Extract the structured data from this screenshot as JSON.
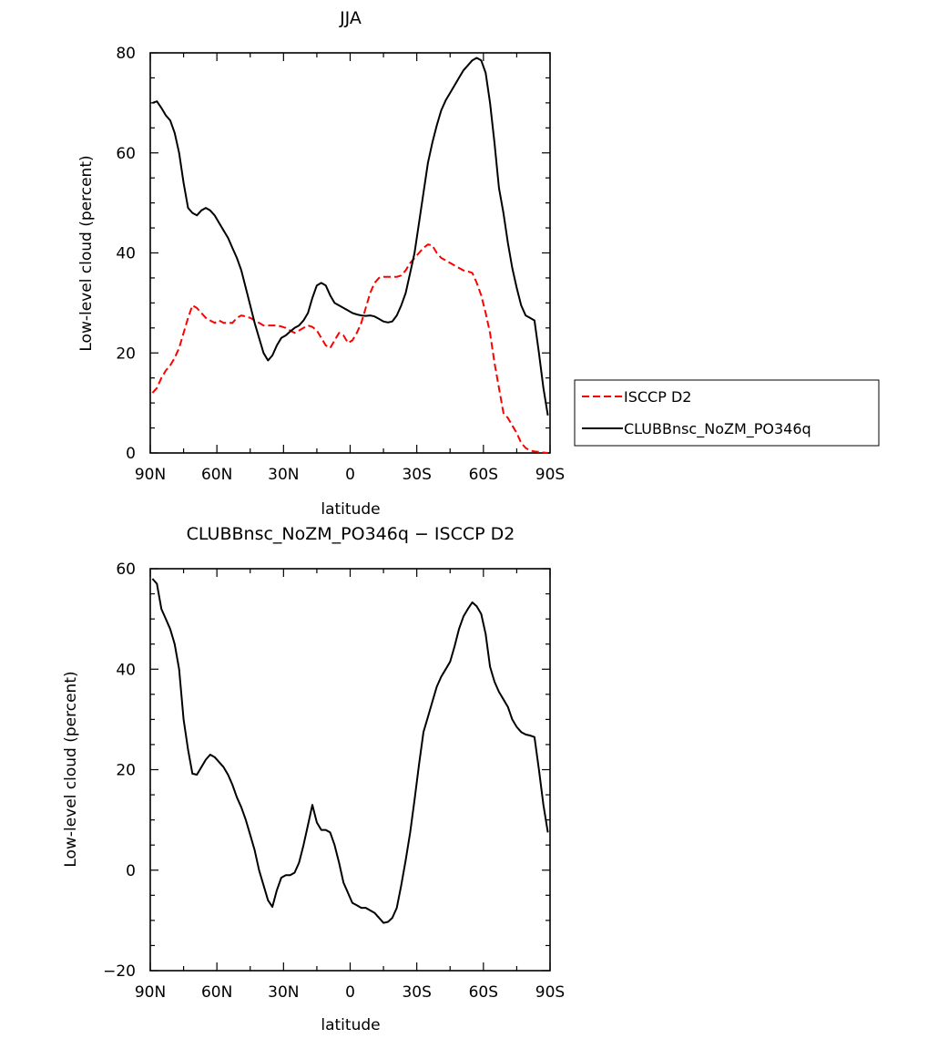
{
  "chart_data": [
    {
      "type": "line",
      "title": "JJA",
      "xlabel": "latitude",
      "ylabel": "Low-level cloud (percent)",
      "xlim": [
        90,
        -90
      ],
      "ylim": [
        0,
        80
      ],
      "yticks": [
        0,
        20,
        40,
        60,
        80
      ],
      "xticks": [
        {
          "value": 90,
          "label": "90N"
        },
        {
          "value": 60,
          "label": "60N"
        },
        {
          "value": 30,
          "label": "30N"
        },
        {
          "value": 0,
          "label": "0"
        },
        {
          "value": -30,
          "label": "30S"
        },
        {
          "value": -60,
          "label": "60S"
        },
        {
          "value": -90,
          "label": "90S"
        }
      ],
      "legend_position": "right",
      "series": [
        {
          "name": "ISCCP D2",
          "color": "#ff0000",
          "dash": "dashed",
          "x": [
            89,
            87,
            85,
            83,
            81,
            79,
            77,
            75,
            73,
            71,
            69,
            67,
            65,
            63,
            61,
            59,
            57,
            55,
            53,
            51,
            49,
            47,
            45,
            43,
            41,
            39,
            37,
            35,
            33,
            31,
            29,
            27,
            25,
            23,
            21,
            19,
            17,
            15,
            13,
            11,
            9,
            7,
            5,
            3,
            1,
            -1,
            -3,
            -5,
            -7,
            -9,
            -11,
            -13,
            -15,
            -17,
            -19,
            -21,
            -23,
            -25,
            -27,
            -29,
            -31,
            -33,
            -35,
            -37,
            -39,
            -41,
            -43,
            -45,
            -47,
            -49,
            -51,
            -53,
            -55,
            -57,
            -59,
            -61,
            -63,
            -65,
            -67,
            -69,
            -71,
            -73,
            -75,
            -77,
            -79,
            -81,
            -83,
            -85,
            -87,
            -89
          ],
          "y": [
            12,
            13,
            15,
            16.5,
            17.5,
            19,
            21,
            24,
            27,
            29.5,
            29,
            28,
            27,
            26.5,
            26,
            26.5,
            26,
            26,
            26,
            27,
            27.5,
            27.3,
            27,
            26.5,
            26,
            25.5,
            25.5,
            25.5,
            25.5,
            25.3,
            25,
            24.5,
            24,
            24.5,
            25,
            25.5,
            25.2,
            24.5,
            23,
            21.5,
            21,
            22.5,
            24,
            23.5,
            22,
            22.5,
            24,
            26,
            29,
            32,
            34,
            35,
            35.2,
            35.2,
            35.2,
            35.2,
            35.5,
            36.5,
            38,
            39,
            40,
            41,
            41.7,
            41.5,
            40,
            39,
            38.5,
            38,
            37.5,
            37,
            36.5,
            36.3,
            36,
            34,
            31.5,
            28,
            24,
            18,
            13,
            8,
            7,
            5.5,
            4,
            2,
            1,
            0.5,
            0.3,
            0.2,
            0.1,
            0
          ]
        },
        {
          "name": "CLUBBnsc_NoZM_PO346q",
          "color": "#000000",
          "dash": "solid",
          "x": [
            89,
            87,
            85,
            83,
            81,
            79,
            77,
            75,
            73,
            71,
            69,
            67,
            65,
            63,
            61,
            59,
            57,
            55,
            53,
            51,
            49,
            47,
            45,
            43,
            41,
            39,
            37,
            35,
            33,
            31,
            29,
            27,
            25,
            23,
            21,
            19,
            17,
            15,
            13,
            11,
            9,
            7,
            5,
            3,
            1,
            -1,
            -3,
            -5,
            -7,
            -9,
            -11,
            -13,
            -15,
            -17,
            -19,
            -21,
            -23,
            -25,
            -27,
            -29,
            -31,
            -33,
            -35,
            -37,
            -39,
            -41,
            -43,
            -45,
            -47,
            -49,
            -51,
            -53,
            -55,
            -57,
            -59,
            -61,
            -63,
            -65,
            -67,
            -69,
            -71,
            -73,
            -75,
            -77,
            -79,
            -81,
            -83,
            -85,
            -87,
            -89
          ],
          "y": [
            70,
            70.3,
            69,
            67.5,
            66.5,
            64,
            60,
            54,
            49,
            48,
            47.5,
            48.5,
            49,
            48.5,
            47.5,
            46,
            44.5,
            43,
            41,
            39,
            36.5,
            33,
            29.5,
            26,
            23,
            20,
            18.5,
            19.5,
            21.5,
            23,
            23.5,
            24.3,
            25,
            25.5,
            26.5,
            28,
            31,
            33.5,
            34,
            33.5,
            31.5,
            30,
            29.5,
            29,
            28.5,
            28,
            27.7,
            27.5,
            27.4,
            27.5,
            27.3,
            26.8,
            26.3,
            26.1,
            26.3,
            27.5,
            29.5,
            32,
            36,
            40,
            46,
            52,
            58,
            62,
            65.5,
            68.5,
            70.5,
            72,
            73.5,
            75,
            76.5,
            77.5,
            78.5,
            79,
            78.5,
            76,
            70,
            62,
            53,
            48,
            42,
            37,
            33,
            29.5,
            27.5,
            27,
            26.5,
            20,
            13,
            7.5
          ]
        }
      ]
    },
    {
      "type": "line",
      "title": "CLUBBnsc_NoZM_PO346q − ISCCP D2",
      "xlabel": "latitude",
      "ylabel": "Low-level cloud (percent)",
      "xlim": [
        90,
        -90
      ],
      "ylim": [
        -20,
        60
      ],
      "yticks": [
        -20,
        0,
        20,
        40,
        60
      ],
      "xticks": [
        {
          "value": 90,
          "label": "90N"
        },
        {
          "value": 60,
          "label": "60N"
        },
        {
          "value": 30,
          "label": "30N"
        },
        {
          "value": 0,
          "label": "0"
        },
        {
          "value": -30,
          "label": "30S"
        },
        {
          "value": -60,
          "label": "60S"
        },
        {
          "value": -90,
          "label": "90S"
        }
      ],
      "series": [
        {
          "color": "#000000",
          "dash": "solid",
          "x": [
            89,
            87,
            85,
            83,
            81,
            79,
            77,
            75,
            73,
            71,
            69,
            67,
            65,
            63,
            61,
            59,
            57,
            55,
            53,
            51,
            49,
            47,
            45,
            43,
            41,
            39,
            37,
            35,
            33,
            31,
            29,
            27,
            25,
            23,
            21,
            19,
            17,
            15,
            13,
            11,
            9,
            7,
            5,
            3,
            1,
            -1,
            -3,
            -5,
            -7,
            -9,
            -11,
            -13,
            -15,
            -17,
            -19,
            -21,
            -23,
            -25,
            -27,
            -29,
            -31,
            -33,
            -35,
            -37,
            -39,
            -41,
            -43,
            -45,
            -47,
            -49,
            -51,
            -53,
            -55,
            -57,
            -59,
            -61,
            -63,
            -65,
            -67,
            -69,
            -71,
            -73,
            -75,
            -77,
            -79,
            -81,
            -83,
            -85,
            -87,
            -89
          ],
          "y": [
            58,
            57,
            52,
            50,
            48,
            45,
            40,
            30,
            24,
            19.2,
            19,
            20.5,
            22,
            23,
            22.5,
            21.5,
            20.5,
            19,
            17,
            14.5,
            12.5,
            10,
            7,
            4,
            0,
            -3,
            -6,
            -7.3,
            -4,
            -1.5,
            -1,
            -1,
            -0.5,
            1.5,
            5,
            9,
            13,
            9.5,
            8,
            8,
            7.5,
            5,
            1.5,
            -2.5,
            -4.5,
            -6.5,
            -7,
            -7.5,
            -7.5,
            -8,
            -8.5,
            -9.5,
            -10.5,
            -10.3,
            -9.5,
            -7.5,
            -3,
            2,
            7.5,
            14,
            21,
            27.5,
            30.5,
            33.5,
            36.5,
            38.5,
            40,
            41.5,
            44.5,
            48,
            50.5,
            52,
            53.3,
            52.5,
            51,
            47,
            40.5,
            37.5,
            35.5,
            34,
            32.5,
            30,
            28.5,
            27.5,
            27,
            26.8,
            26.5,
            20,
            13,
            7.5
          ]
        }
      ]
    }
  ]
}
